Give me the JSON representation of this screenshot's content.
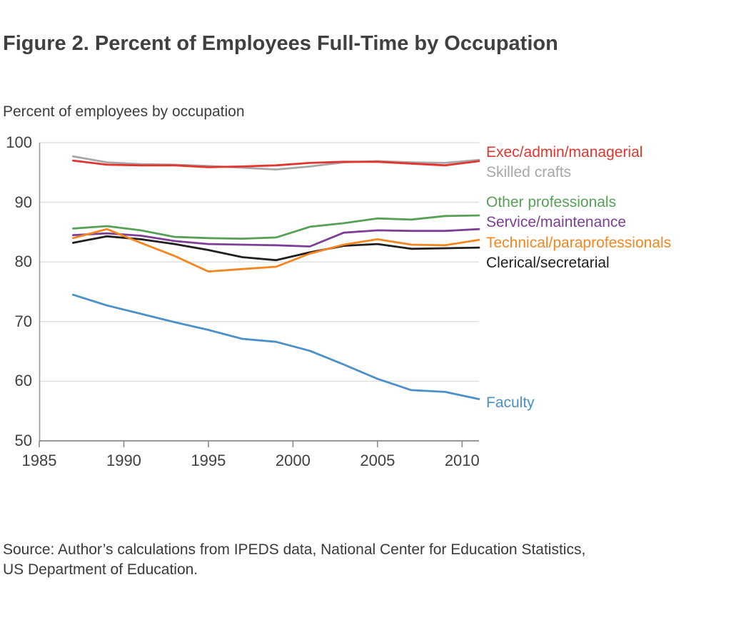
{
  "title": "Figure 2. Percent of Employees Full-Time by Occupation",
  "subtitle": "Percent of employees by occupation",
  "source": {
    "line1": "Source: Author’s calculations from IPEDS data, National Center for Education Statistics,",
    "line2": "US Department of Education."
  },
  "colors": {
    "text": "#404040",
    "grid": "#dddddd",
    "axis_left": "#9d9d9d",
    "axis_bottom": "#8a8a8a"
  },
  "chart_data": {
    "type": "line",
    "title": "Figure 2. Percent of Employees Full-Time by Occupation",
    "ylabel": "Percent of employees by occupation",
    "xlabel": "",
    "xlim": [
      1985,
      2011
    ],
    "ylim": [
      50,
      100
    ],
    "x_ticks": [
      1985,
      1990,
      1995,
      2000,
      2005,
      2010
    ],
    "y_ticks": [
      50,
      60,
      70,
      80,
      90,
      100
    ],
    "grid": "horizontal",
    "legend_position": "right-of-plot inline labels",
    "x": [
      1987,
      1989,
      1991,
      1993,
      1995,
      1997,
      1999,
      2001,
      2003,
      2005,
      2007,
      2009,
      2011
    ],
    "series": [
      {
        "name": "Exec/admin/managerial",
        "color": "#e1352d",
        "values": [
          97.0,
          96.3,
          96.2,
          96.2,
          95.9,
          96.0,
          96.2,
          96.6,
          96.8,
          96.8,
          96.5,
          96.2,
          96.9
        ]
      },
      {
        "name": "Skilled crafts",
        "color": "#a7a7aa",
        "values": [
          97.7,
          96.7,
          96.4,
          96.3,
          96.1,
          95.8,
          95.5,
          96.0,
          96.7,
          96.9,
          96.7,
          96.6,
          97.1
        ]
      },
      {
        "name": "Other professionals",
        "color": "#56a155",
        "values": [
          85.6,
          86.0,
          85.3,
          84.2,
          84.0,
          83.9,
          84.1,
          85.9,
          86.5,
          87.3,
          87.1,
          87.7,
          87.8
        ]
      },
      {
        "name": "Service/maintenance",
        "color": "#7c3f98",
        "values": [
          84.5,
          84.8,
          84.4,
          83.5,
          83.0,
          82.9,
          82.8,
          82.6,
          84.9,
          85.3,
          85.2,
          85.2,
          85.5
        ]
      },
      {
        "name": "Technical/paraprofessionals",
        "color": "#f5861f",
        "values": [
          84.0,
          85.5,
          83.2,
          81.0,
          78.4,
          78.8,
          79.2,
          81.4,
          82.9,
          83.8,
          82.9,
          82.8,
          83.7
        ]
      },
      {
        "name": "Clerical/secretarial",
        "color": "#221e1f",
        "values": [
          83.2,
          84.3,
          83.8,
          83.0,
          82.0,
          80.8,
          80.3,
          81.6,
          82.7,
          83.0,
          82.2,
          82.3,
          82.4
        ]
      },
      {
        "name": "Faculty",
        "color": "#4b90c8",
        "values": [
          74.5,
          72.7,
          71.3,
          69.9,
          68.6,
          67.1,
          66.6,
          65.1,
          62.8,
          60.4,
          58.5,
          58.2,
          57.0
        ]
      }
    ],
    "plot_draw_order": [
      1,
      0,
      5,
      3,
      4,
      2,
      6
    ]
  }
}
